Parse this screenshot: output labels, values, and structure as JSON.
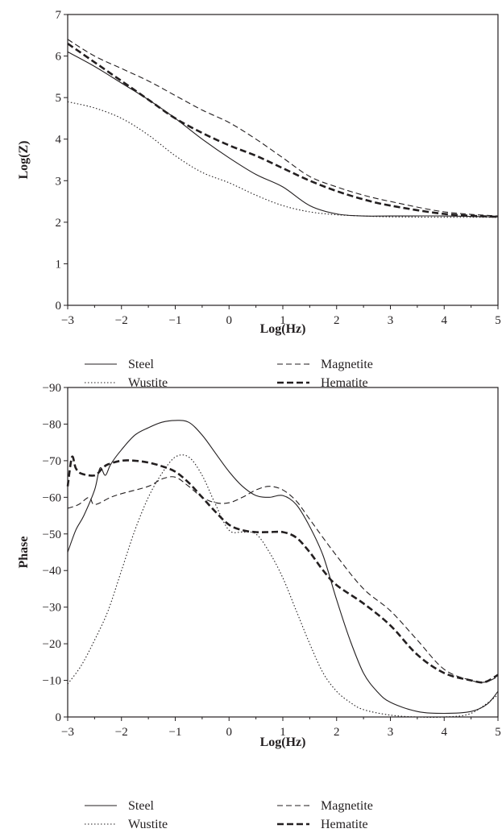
{
  "chart_data": [
    {
      "type": "line",
      "xlabel": "Log(Hz)",
      "ylabel": "Log(Z)",
      "xlim": [
        -3,
        5
      ],
      "ylim": [
        0,
        7
      ],
      "y_reversed": false,
      "x_ticks": [
        "−3",
        "−2",
        "−1",
        "0",
        "1",
        "2",
        "3",
        "4",
        "5"
      ],
      "y_ticks": [
        "0",
        "1",
        "2",
        "3",
        "4",
        "5",
        "6",
        "7"
      ],
      "grid": false,
      "legend_position": "below",
      "series": [
        {
          "name": "Steel",
          "style": "solid",
          "color": "#231f20",
          "x": [
            -3,
            -2.5,
            -2,
            -1.5,
            -1,
            -0.5,
            0,
            0.5,
            1,
            1.5,
            2,
            2.5,
            3,
            4,
            5
          ],
          "y": [
            6.1,
            5.75,
            5.35,
            4.95,
            4.5,
            4.0,
            3.55,
            3.15,
            2.85,
            2.4,
            2.2,
            2.15,
            2.15,
            2.15,
            2.13
          ]
        },
        {
          "name": "Magnetite",
          "style": "dashed",
          "color": "#231f20",
          "x": [
            -3,
            -2.5,
            -2,
            -1.5,
            -1,
            -0.5,
            0,
            0.5,
            1,
            1.5,
            2,
            2.5,
            3,
            4,
            5
          ],
          "y": [
            6.4,
            6.0,
            5.7,
            5.4,
            5.05,
            4.7,
            4.4,
            4.0,
            3.55,
            3.1,
            2.85,
            2.65,
            2.5,
            2.25,
            2.15
          ]
        },
        {
          "name": "Wustite",
          "style": "dotted",
          "color": "#231f20",
          "x": [
            -3,
            -2.5,
            -2,
            -1.5,
            -1,
            -0.5,
            0,
            0.5,
            1,
            1.5,
            2,
            2.5,
            3,
            4,
            5
          ],
          "y": [
            4.9,
            4.75,
            4.5,
            4.1,
            3.6,
            3.2,
            2.95,
            2.65,
            2.4,
            2.25,
            2.18,
            2.15,
            2.13,
            2.12,
            2.12
          ]
        },
        {
          "name": "Hematite",
          "style": "bold-dashed",
          "color": "#231f20",
          "x": [
            -3,
            -2.5,
            -2,
            -1.5,
            -1,
            -0.5,
            0,
            0.5,
            1,
            1.5,
            2,
            2.5,
            3,
            4,
            5
          ],
          "y": [
            6.3,
            5.85,
            5.4,
            4.95,
            4.5,
            4.15,
            3.85,
            3.6,
            3.3,
            3.0,
            2.75,
            2.55,
            2.4,
            2.2,
            2.13
          ]
        }
      ],
      "legend": [
        {
          "label": "Steel",
          "style": "solid"
        },
        {
          "label": "Magnetite",
          "style": "dashed"
        },
        {
          "label": "Wustite",
          "style": "dotted"
        },
        {
          "label": "Hematite",
          "style": "bold-dashed"
        }
      ]
    },
    {
      "type": "line",
      "xlabel": "Log(Hz)",
      "ylabel": "Phase",
      "xlim": [
        -3,
        5
      ],
      "ylim": [
        0,
        -90
      ],
      "y_reversed": false,
      "x_ticks": [
        "−3",
        "−2",
        "−1",
        "0",
        "1",
        "2",
        "3",
        "4",
        "5"
      ],
      "y_ticks": [
        "0",
        "−10",
        "−20",
        "−30",
        "−40",
        "−50",
        "−60",
        "−70",
        "−80",
        "−90"
      ],
      "grid": false,
      "legend_position": "below",
      "series": [
        {
          "name": "Steel",
          "style": "solid",
          "color": "#231f20",
          "x": [
            -3,
            -2.85,
            -2.7,
            -2.5,
            -2.4,
            -2.3,
            -2.2,
            -2,
            -1.75,
            -1.5,
            -1.25,
            -1,
            -0.75,
            -0.5,
            -0.25,
            0,
            0.25,
            0.5,
            0.75,
            1,
            1.25,
            1.5,
            1.75,
            2,
            2.25,
            2.5,
            2.75,
            3,
            3.5,
            4,
            4.5,
            4.8,
            5
          ],
          "y": [
            -45,
            -51,
            -55,
            -62,
            -68,
            -66,
            -69,
            -73,
            -77,
            -79,
            -80.5,
            -81,
            -80.5,
            -77,
            -72,
            -67,
            -63,
            -60.5,
            -60,
            -60.5,
            -58,
            -52,
            -44,
            -32,
            -21,
            -12,
            -7,
            -4,
            -1.5,
            -1,
            -1.5,
            -3.5,
            -7
          ]
        },
        {
          "name": "Magnetite",
          "style": "dashed",
          "color": "#231f20",
          "x": [
            -3,
            -2.8,
            -2.6,
            -2.5,
            -2.2,
            -2,
            -1.5,
            -1.25,
            -1,
            -0.75,
            -0.5,
            -0.25,
            0,
            0.25,
            0.5,
            0.75,
            1,
            1.25,
            1.5,
            2,
            2.5,
            3,
            3.5,
            4,
            4.5,
            4.75,
            5
          ],
          "y": [
            -57,
            -58,
            -60,
            -58,
            -60,
            -61,
            -63,
            -65,
            -65.5,
            -63,
            -60,
            -58.5,
            -58.5,
            -60,
            -62,
            -63,
            -62,
            -59,
            -54,
            -44,
            -35,
            -29,
            -21,
            -13,
            -10,
            -9.5,
            -11
          ]
        },
        {
          "name": "Wustite",
          "style": "dotted",
          "color": "#231f20",
          "x": [
            -3,
            -2.75,
            -2.5,
            -2.25,
            -2,
            -1.75,
            -1.5,
            -1.25,
            -1,
            -0.75,
            -0.5,
            -0.25,
            0,
            0.25,
            0.5,
            0.75,
            1,
            1.25,
            1.5,
            1.75,
            2,
            2.25,
            2.5,
            3,
            3.5,
            4,
            4.5,
            5
          ],
          "y": [
            -9,
            -14,
            -21,
            -29,
            -40,
            -51,
            -60,
            -66.5,
            -71,
            -71,
            -66,
            -58,
            -51,
            -50.5,
            -50,
            -45,
            -38,
            -29,
            -20,
            -12,
            -7,
            -4,
            -2,
            -0.5,
            0,
            0,
            -1,
            -6
          ]
        },
        {
          "name": "Hematite",
          "style": "bold-dashed",
          "color": "#231f20",
          "x": [
            -3,
            -2.92,
            -2.85,
            -2.75,
            -2.5,
            -2.35,
            -2.25,
            -2,
            -1.75,
            -1.5,
            -1.25,
            -1,
            -0.75,
            -0.5,
            -0.25,
            0,
            0.25,
            0.5,
            0.75,
            1,
            1.25,
            1.5,
            1.75,
            2,
            2.5,
            3,
            3.5,
            4,
            4.5,
            4.75,
            5
          ],
          "y": [
            -63,
            -71,
            -68,
            -66.5,
            -66,
            -68,
            -69,
            -70,
            -70,
            -69.5,
            -68.5,
            -67,
            -64,
            -60,
            -56,
            -52.5,
            -51,
            -50.5,
            -50.5,
            -50.5,
            -49,
            -45,
            -40,
            -36,
            -31,
            -25,
            -17,
            -12,
            -10,
            -9.5,
            -11.5
          ]
        }
      ],
      "legend": [
        {
          "label": "Steel",
          "style": "solid"
        },
        {
          "label": "Magnetite",
          "style": "dashed"
        },
        {
          "label": "Wustite",
          "style": "dotted"
        },
        {
          "label": "Hematite",
          "style": "bold-dashed"
        }
      ]
    }
  ]
}
